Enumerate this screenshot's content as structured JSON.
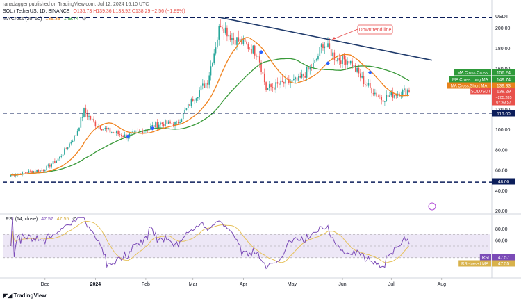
{
  "header": {
    "published_by": "ranadagger published on TradingView.com, Jul 12, 2024 16:10 UTC",
    "symbol": "SOL / TetherUS, 1D, BINANCE",
    "ohlc": "O135.73  H139.36  L133.92  C138.29  −2.56 (−1.89%)",
    "ma_label": "MA Cross (20, 50)",
    "ma_short_value": "139.33",
    "ma_long_value": "149.74",
    "ma_tail": "∅",
    "rsi_label": "RSI (14, close)",
    "rsi_value": "47.57",
    "rsi_ma_value": "47.55",
    "rsi_tail": "∅"
  },
  "colors": {
    "up": "#26a69a",
    "down": "#ef5350",
    "ma_short": "#f0821e",
    "ma_long": "#3a9a3a",
    "trendline": "#1f3a6b",
    "level_line": "#0b1d5a",
    "rsi": "#7b4bb7",
    "rsi_ma": "#e6c15a",
    "rsi_band": "#ede7f6",
    "annotation": "#e64a4a"
  },
  "chart_data": {
    "type": "candlestick",
    "y_unit": "USDT",
    "ylim": [
      20,
      215
    ],
    "y_ticks": [
      "200.00",
      "180.00",
      "160.00",
      "140.00",
      "120.00",
      "100.00",
      "80.00",
      "60.00",
      "40.00",
      "20.00"
    ],
    "x_ticks": [
      "Dec",
      "2024",
      "Feb",
      "Mar",
      "Apr",
      "May",
      "Jun",
      "Jul",
      "Aug"
    ],
    "levels": [
      {
        "label": "116.00",
        "value": 116
      },
      {
        "label": "48.00",
        "value": 48
      },
      {
        "label": "",
        "value": 210
      }
    ],
    "trendline": {
      "label": "Downtrend line",
      "from": [
        "2024-03-18",
        210
      ],
      "to": [
        "2024-07-26",
        168
      ]
    },
    "price_tags": [
      {
        "label": "MA Cross:Cross",
        "value": "156.24"
      },
      {
        "label": "MA Cross:Long MA",
        "value": "149.74"
      },
      {
        "label": "MA Cross:Short MA",
        "value": "139.33"
      },
      {
        "label": "SOLUSDT",
        "value": "138.29",
        "sub": "−205.285",
        "sub2": "07:49:57"
      },
      {
        "label": "",
        "value": "116.00"
      },
      {
        "label": "",
        "value": "48.00"
      }
    ],
    "cross_markers": [
      {
        "date": "2024-01-21",
        "value": 93
      },
      {
        "date": "2024-02-05",
        "value": 101
      },
      {
        "date": "2024-04-12",
        "value": 176
      },
      {
        "date": "2024-05-23",
        "value": 165
      },
      {
        "date": "2024-06-18",
        "value": 156
      }
    ],
    "close_approx": [
      {
        "date": "2023-11-10",
        "value": 55
      },
      {
        "date": "2023-11-20",
        "value": 58
      },
      {
        "date": "2023-11-30",
        "value": 60
      },
      {
        "date": "2023-12-10",
        "value": 72
      },
      {
        "date": "2023-12-20",
        "value": 95
      },
      {
        "date": "2023-12-25",
        "value": 118
      },
      {
        "date": "2024-01-01",
        "value": 105
      },
      {
        "date": "2024-01-10",
        "value": 98
      },
      {
        "date": "2024-01-20",
        "value": 93
      },
      {
        "date": "2024-02-01",
        "value": 100
      },
      {
        "date": "2024-02-10",
        "value": 106
      },
      {
        "date": "2024-02-20",
        "value": 105
      },
      {
        "date": "2024-03-01",
        "value": 130
      },
      {
        "date": "2024-03-10",
        "value": 148
      },
      {
        "date": "2024-03-18",
        "value": 205
      },
      {
        "date": "2024-03-25",
        "value": 190
      },
      {
        "date": "2024-04-01",
        "value": 185
      },
      {
        "date": "2024-04-10",
        "value": 175
      },
      {
        "date": "2024-04-15",
        "value": 140
      },
      {
        "date": "2024-04-25",
        "value": 145
      },
      {
        "date": "2024-05-05",
        "value": 148
      },
      {
        "date": "2024-05-15",
        "value": 165
      },
      {
        "date": "2024-05-20",
        "value": 185
      },
      {
        "date": "2024-05-28",
        "value": 170
      },
      {
        "date": "2024-06-05",
        "value": 168
      },
      {
        "date": "2024-06-15",
        "value": 145
      },
      {
        "date": "2024-06-25",
        "value": 130
      },
      {
        "date": "2024-07-05",
        "value": 136
      },
      {
        "date": "2024-07-12",
        "value": 138.29
      }
    ],
    "rsi": {
      "ylim": [
        0,
        100
      ],
      "y_ticks": [
        "80.00",
        "60.00"
      ],
      "band": [
        30,
        70
      ],
      "tags": [
        {
          "label": "RSI",
          "value": "47.57"
        },
        {
          "label": "RSI-based MA",
          "value": "47.55"
        }
      ]
    }
  },
  "footer": {
    "brand": "TradingView"
  }
}
